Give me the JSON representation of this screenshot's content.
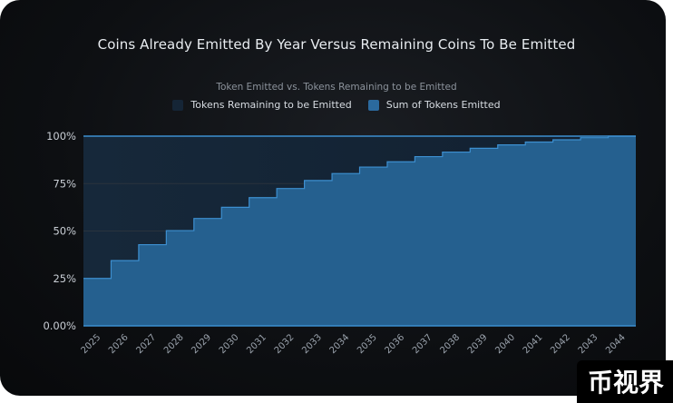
{
  "chart_data": {
    "type": "area",
    "title": "Coins Already Emitted By Year Versus Remaining Coins To Be Emitted",
    "subtitle": "Token Emitted vs. Tokens Remaining to be Emitted",
    "categories": [
      "2025",
      "2026",
      "2027",
      "2028",
      "2029",
      "2030",
      "2031",
      "2032",
      "2033",
      "2034",
      "2035",
      "2036",
      "2037",
      "2038",
      "2039",
      "2040",
      "2041",
      "2042",
      "2043",
      "2044"
    ],
    "y_ticks": [
      "0.00%",
      "25%",
      "50%",
      "75%",
      "100%"
    ],
    "ylim": [
      0,
      100
    ],
    "grid": true,
    "legend_position": "top",
    "series": [
      {
        "name": "Tokens Remaining to be Emitted",
        "color": "#152536",
        "values": [
          75,
          65.6,
          57.2,
          49.8,
          43.4,
          37.5,
          32.4,
          27.6,
          23.4,
          19.7,
          16.3,
          13.5,
          10.8,
          8.4,
          6.4,
          4.6,
          3.1,
          1.9,
          0.8,
          0
        ]
      },
      {
        "name": "Sum of Tokens Emitted",
        "color": "#2b6a9e",
        "values": [
          25,
          34.4,
          42.8,
          50.2,
          56.6,
          62.5,
          67.6,
          72.4,
          76.6,
          80.3,
          83.7,
          86.5,
          89.2,
          91.6,
          93.6,
          95.4,
          96.9,
          98.1,
          99.2,
          100
        ]
      }
    ]
  },
  "watermark": "币视界"
}
